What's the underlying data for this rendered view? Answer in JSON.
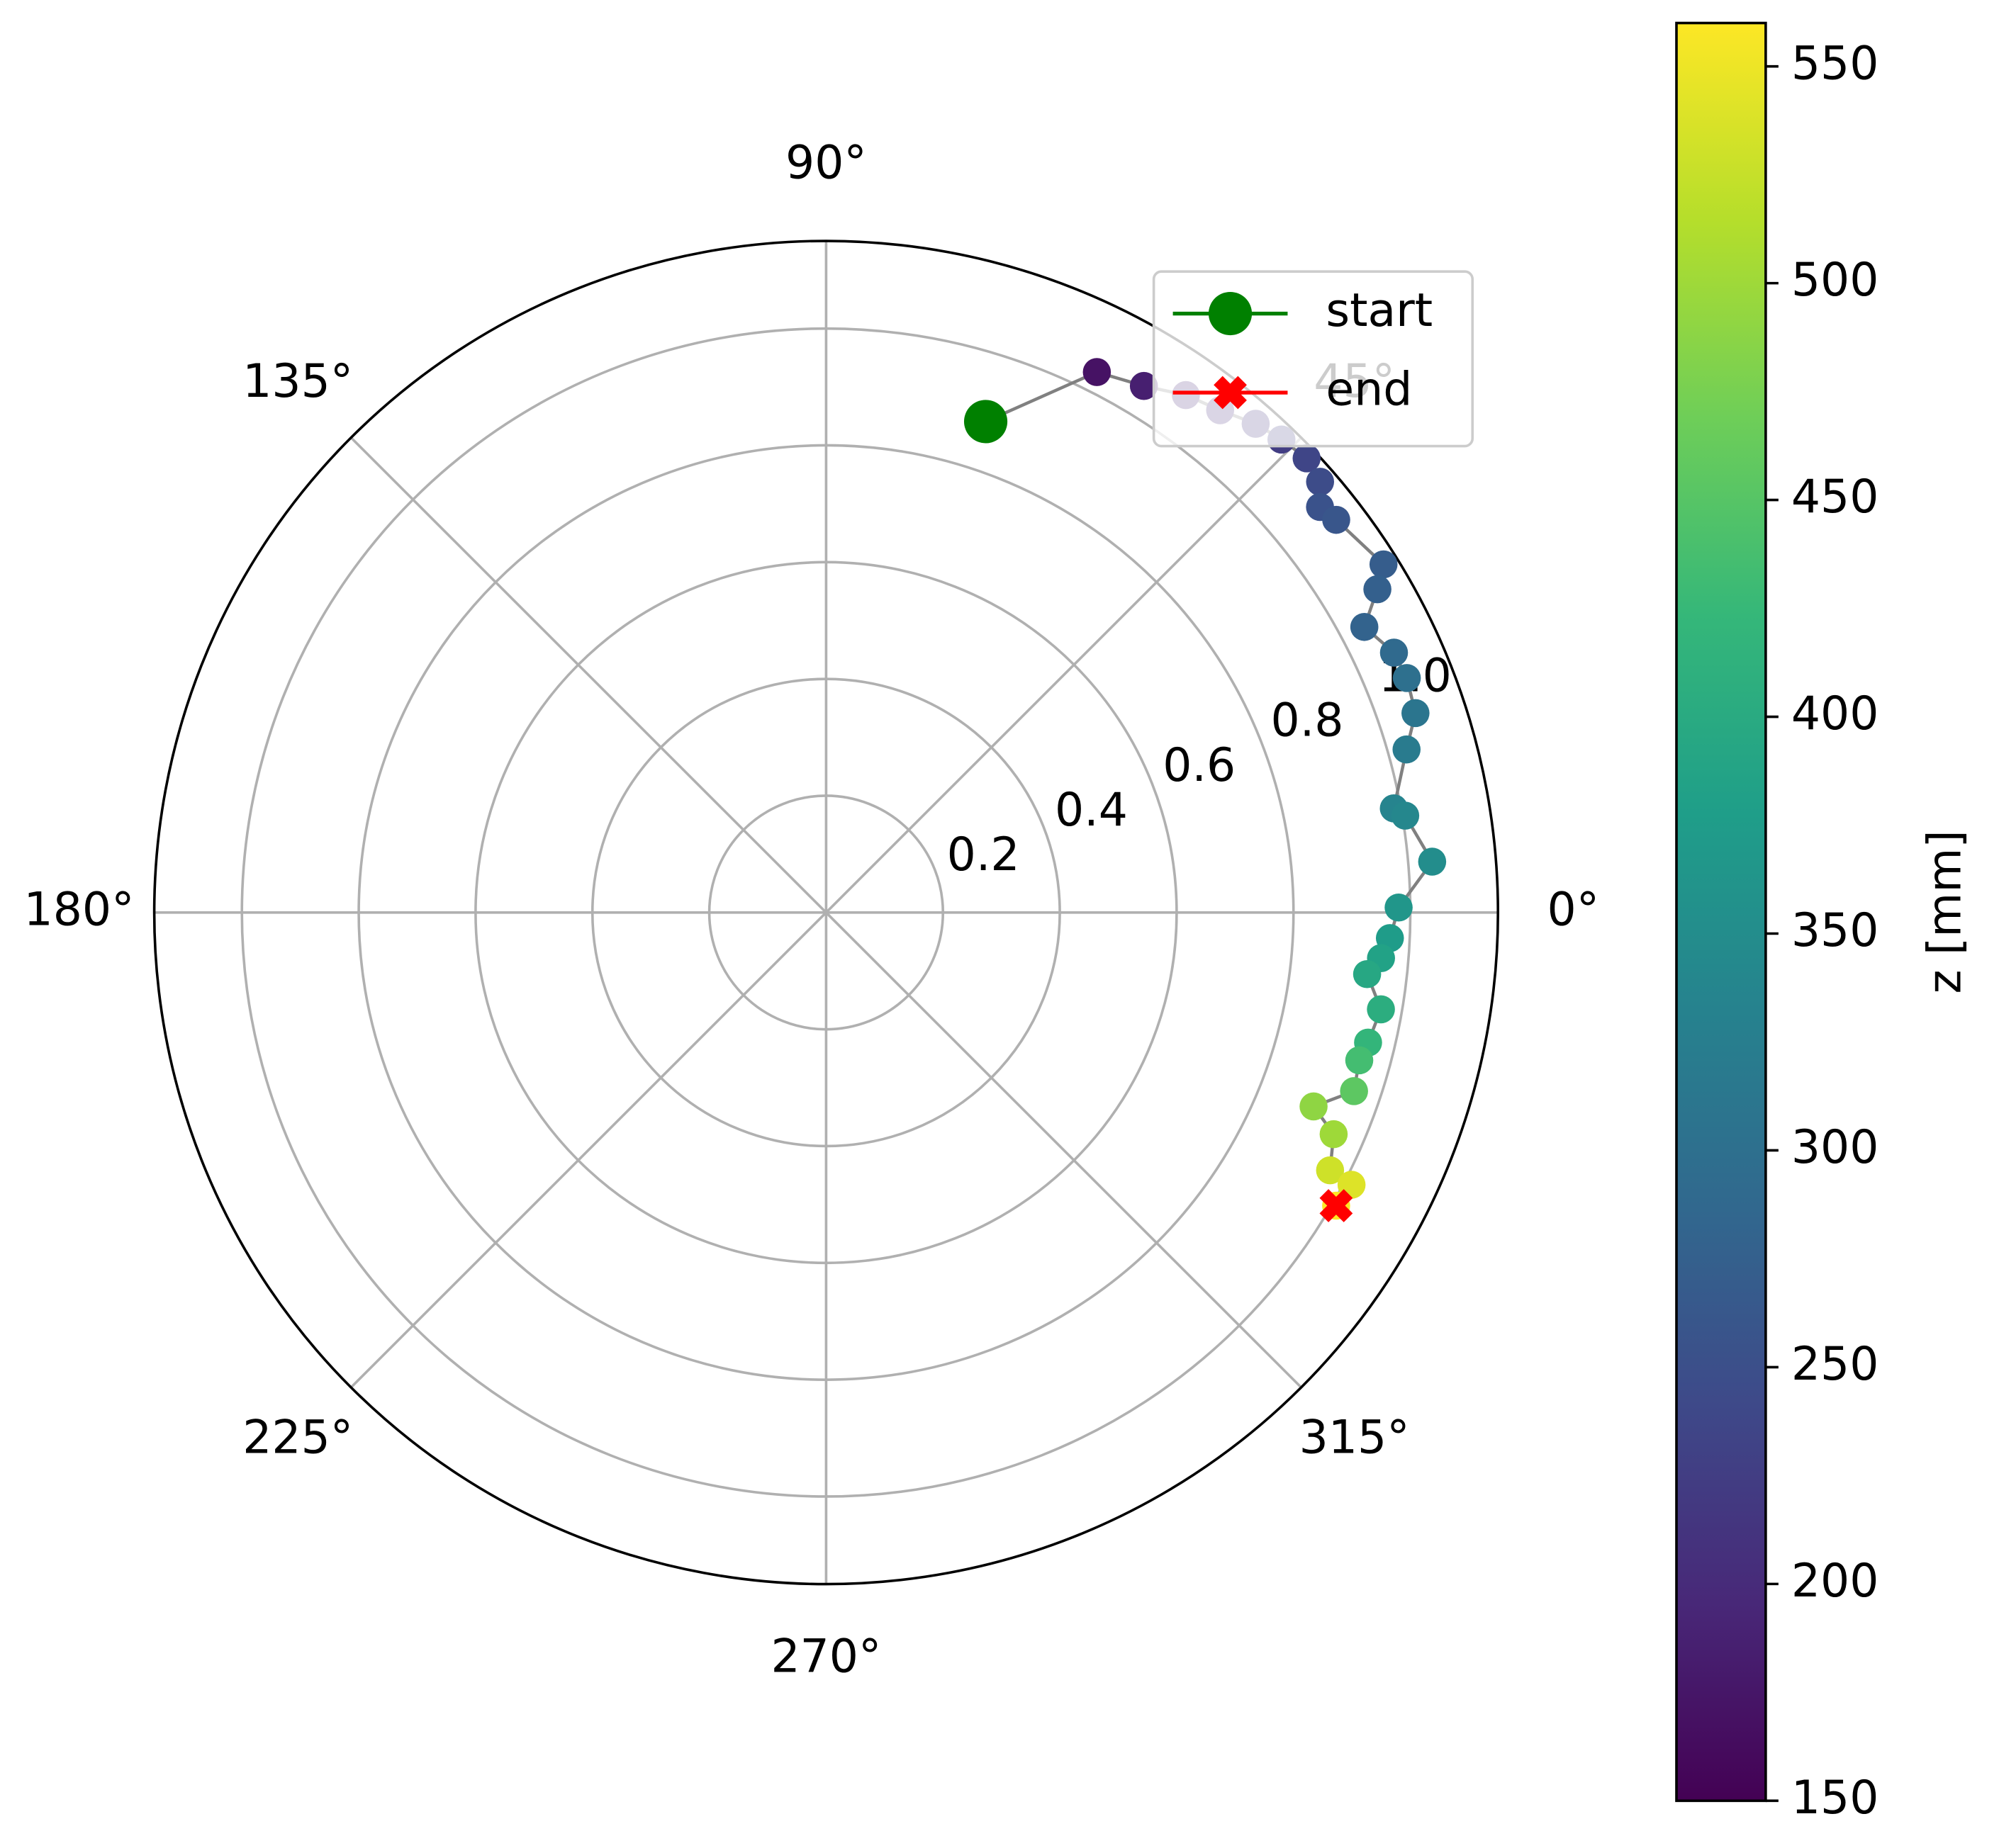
{
  "chart_data": {
    "type": "polar",
    "theta": [
      72.0,
      63.4,
      58.9,
      55.2,
      51.9,
      48.7,
      46.1,
      43.4,
      41.1,
      39.4,
      37.6,
      32.0,
      30.4,
      27.96,
      24.6,
      22.0,
      18.7,
      15.7,
      10.4,
      9.5,
      4.8,
      0.5,
      -2.6,
      -4.7,
      -6.5,
      -9.9,
      -13.5,
      -15.5,
      -18.7,
      -21.7,
      -23.6,
      -27.1,
      -27.4,
      -29.9
    ],
    "r": [
      0.884,
      1.035,
      1.053,
      1.079,
      1.093,
      1.114,
      1.124,
      1.132,
      1.122,
      1.094,
      1.102,
      1.125,
      1.094,
      1.043,
      1.069,
      1.072,
      1.065,
      1.032,
      0.988,
      1.005,
      1.041,
      0.98,
      0.966,
      0.953,
      0.932,
      0.964,
      0.954,
      0.947,
      0.954,
      0.898,
      0.948,
      0.969,
      1.013,
      1.007
    ],
    "z": [
      150,
      170,
      185,
      195,
      205,
      215,
      225,
      235,
      245,
      255,
      260,
      270,
      275,
      280,
      290,
      300,
      310,
      320,
      335,
      340,
      350,
      365,
      375,
      385,
      395,
      405,
      420,
      435,
      455,
      490,
      500,
      530,
      540,
      560
    ],
    "line_color": "#808080",
    "colormap": "viridis",
    "rlim": [
      0,
      1.15
    ],
    "rticks": [
      0.2,
      0.4,
      0.6,
      0.8,
      {
        "value": 1,
        "label": "1.0"
      }
    ],
    "thetaticks": [
      {
        "value": 0,
        "label": "0°"
      },
      {
        "value": 45,
        "label": "45°"
      },
      {
        "value": 90,
        "label": "90°"
      },
      {
        "value": 135,
        "label": "135°"
      },
      {
        "value": 180,
        "label": "180°"
      },
      {
        "value": 225,
        "label": "225°"
      },
      {
        "value": 270,
        "label": "270°"
      },
      {
        "value": 315,
        "label": "315°"
      }
    ],
    "grid": true,
    "legend": [
      {
        "name": "start",
        "color": "#008000",
        "marker": "circle"
      },
      {
        "name": "end",
        "color": "#ff0000",
        "marker": "x"
      }
    ],
    "legend_position": "upper right",
    "colorbar": {
      "label": "z [mm]",
      "lim": [
        150,
        560
      ],
      "ticks": [
        150,
        200,
        250,
        300,
        350,
        400,
        450,
        500,
        550
      ]
    }
  }
}
